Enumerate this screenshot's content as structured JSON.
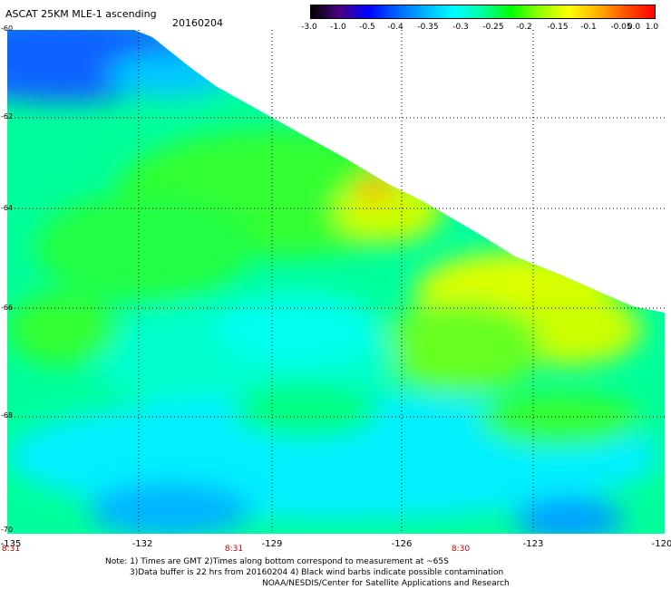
{
  "header": {
    "title": "ASCAT 25KM MLE-1 ascending",
    "date": "20160204"
  },
  "colorbar": {
    "labels": [
      "-3.0",
      "-1.0",
      "-0.5",
      "-0.4",
      "-0.35",
      "-0.3",
      "-0.25",
      "-0.2",
      "-0.15",
      "-0.1",
      "-0.05",
      "0.0",
      "1.0"
    ],
    "colors": [
      "#000000",
      "#4b0082",
      "#0000ff",
      "#0064ff",
      "#00b4ff",
      "#00ffff",
      "#00ffa0",
      "#00ff00",
      "#96ff00",
      "#ffff00",
      "#ffb400",
      "#ff5000",
      "#ff0000"
    ]
  },
  "map": {
    "lat_labels": [
      "-60",
      "-62",
      "-64",
      "-66",
      "-68",
      "-70"
    ],
    "lon_labels": [
      "-135",
      "-132",
      "-129",
      "-126",
      "-123",
      "-120"
    ],
    "times": [
      "8:31",
      "8:31",
      "8:30"
    ]
  },
  "notes": {
    "line1": "Note: 1) Times are GMT 2)Times along bottom correspond to measurement at ~65S",
    "line2": "3)Data buffer is 22 hrs from 20160204 4) Black wind barbs indicate possible contamination",
    "line3": "NOAA/NESDIS/Center for Satellite Applications and Research"
  }
}
